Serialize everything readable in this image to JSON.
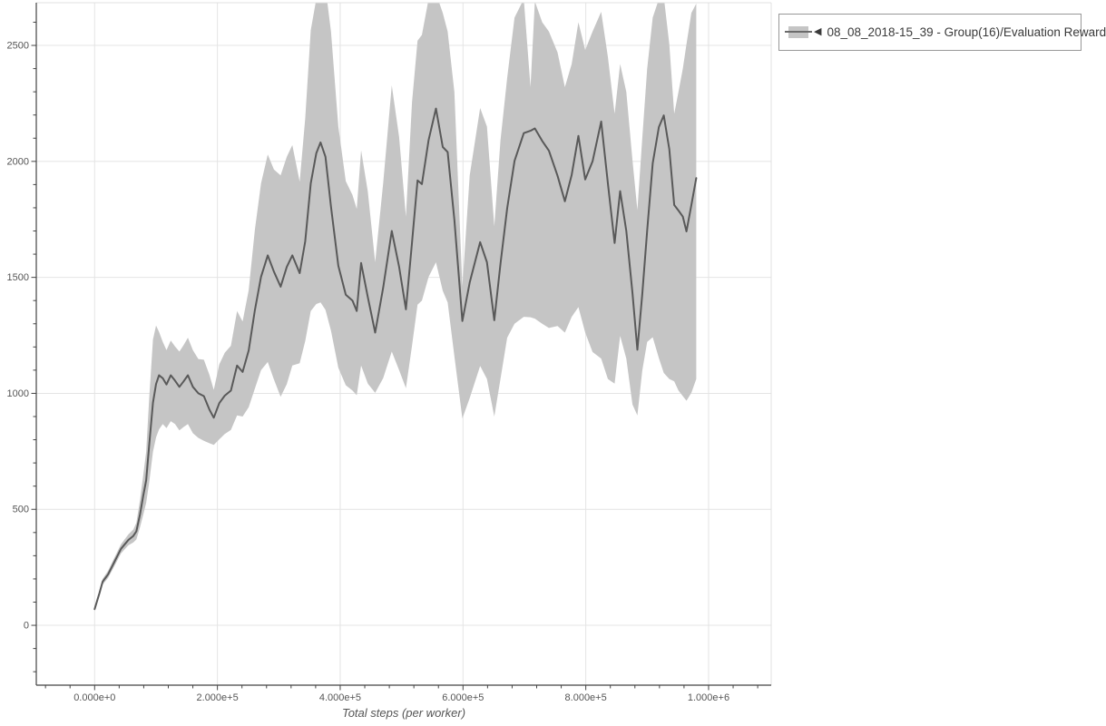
{
  "legend": {
    "collapse_arrow": "◀",
    "entries": [
      {
        "label": "08_08_2018-15_39 - Group(16)/Evaluation Reward",
        "line_color": "#6b6b6b",
        "band_color": "#c5c5c5"
      }
    ]
  },
  "chart_data": {
    "type": "line",
    "title": "",
    "xlabel": "Total steps (per worker)",
    "ylabel": "",
    "grid": true,
    "legend_position": "top-right-outside",
    "xlim": [
      -95000,
      1102000
    ],
    "ylim": [
      -258,
      2684
    ],
    "x_major_ticks": [
      {
        "value": 0,
        "label": "0.000e+0"
      },
      {
        "value": 200000,
        "label": "2.000e+5"
      },
      {
        "value": 400000,
        "label": "4.000e+5"
      },
      {
        "value": 600000,
        "label": "6.000e+5"
      },
      {
        "value": 800000,
        "label": "8.000e+5"
      },
      {
        "value": 1000000,
        "label": "1.000e+6"
      }
    ],
    "x_minor_step": 40000,
    "y_major_ticks": [
      {
        "value": 0,
        "label": "0"
      },
      {
        "value": 500,
        "label": "500"
      },
      {
        "value": 1000,
        "label": "1000"
      },
      {
        "value": 1500,
        "label": "1500"
      },
      {
        "value": 2000,
        "label": "2000"
      },
      {
        "value": 2500,
        "label": "2500"
      }
    ],
    "y_minor_step": 100,
    "series": [
      {
        "name": "08_08_2018-15_39 - Group(16)/Evaluation Reward",
        "color": "#595959",
        "band_color": "#c5c5c5",
        "point_format": [
          "step",
          "mean",
          "band_lower",
          "band_upper"
        ],
        "points": [
          [
            0,
            70,
            62,
            80
          ],
          [
            8000,
            140,
            128,
            152
          ],
          [
            13000,
            188,
            175,
            200
          ],
          [
            22000,
            220,
            205,
            236
          ],
          [
            32000,
            272,
            254,
            290
          ],
          [
            43000,
            330,
            310,
            350
          ],
          [
            55000,
            368,
            345,
            392
          ],
          [
            63000,
            385,
            357,
            413
          ],
          [
            68000,
            405,
            370,
            442
          ],
          [
            74000,
            480,
            424,
            542
          ],
          [
            79000,
            555,
            474,
            642
          ],
          [
            84000,
            625,
            528,
            748
          ],
          [
            89000,
            780,
            618,
            982
          ],
          [
            95000,
            960,
            748,
            1232
          ],
          [
            100000,
            1040,
            810,
            1292
          ],
          [
            105000,
            1078,
            845,
            1265
          ],
          [
            111000,
            1065,
            868,
            1222
          ],
          [
            117000,
            1038,
            850,
            1186
          ],
          [
            124000,
            1078,
            880,
            1228
          ],
          [
            131000,
            1055,
            868,
            1202
          ],
          [
            138000,
            1028,
            840,
            1180
          ],
          [
            145000,
            1052,
            855,
            1208
          ],
          [
            152000,
            1078,
            868,
            1240
          ],
          [
            160000,
            1028,
            828,
            1186
          ],
          [
            169000,
            1000,
            808,
            1148
          ],
          [
            178000,
            988,
            795,
            1145
          ],
          [
            187000,
            930,
            785,
            1080
          ],
          [
            194000,
            895,
            778,
            1015
          ],
          [
            203000,
            958,
            802,
            1125
          ],
          [
            212000,
            990,
            825,
            1175
          ],
          [
            222000,
            1012,
            842,
            1205
          ],
          [
            232000,
            1120,
            905,
            1355
          ],
          [
            241000,
            1092,
            900,
            1310
          ],
          [
            251000,
            1185,
            940,
            1445
          ],
          [
            261000,
            1358,
            1020,
            1705
          ],
          [
            271000,
            1502,
            1100,
            1905
          ],
          [
            282000,
            1595,
            1135,
            2030
          ],
          [
            292000,
            1525,
            1060,
            1965
          ],
          [
            303000,
            1460,
            985,
            1940
          ],
          [
            313000,
            1545,
            1040,
            2020
          ],
          [
            322000,
            1595,
            1120,
            2070
          ],
          [
            334000,
            1518,
            1130,
            1912
          ],
          [
            343000,
            1655,
            1225,
            2185
          ],
          [
            352000,
            1905,
            1355,
            2565
          ],
          [
            361000,
            2035,
            1385,
            2700
          ],
          [
            368000,
            2082,
            1392,
            2770
          ],
          [
            376000,
            2020,
            1360,
            2750
          ],
          [
            385000,
            1805,
            1270,
            2560
          ],
          [
            397000,
            1550,
            1110,
            2150
          ],
          [
            409000,
            1425,
            1035,
            1915
          ],
          [
            420000,
            1400,
            1012,
            1855
          ],
          [
            427000,
            1355,
            992,
            1795
          ],
          [
            434000,
            1562,
            1120,
            2048
          ],
          [
            445000,
            1415,
            1042,
            1870
          ],
          [
            457000,
            1262,
            1002,
            1565
          ],
          [
            470000,
            1455,
            1065,
            1905
          ],
          [
            484000,
            1700,
            1180,
            2328
          ],
          [
            496000,
            1545,
            1100,
            2105
          ],
          [
            507000,
            1362,
            1022,
            1762
          ],
          [
            517000,
            1650,
            1205,
            2255
          ],
          [
            526000,
            1918,
            1382,
            2520
          ],
          [
            533000,
            1902,
            1400,
            2545
          ],
          [
            544000,
            2092,
            1502,
            2700
          ],
          [
            556000,
            2228,
            1565,
            2725
          ],
          [
            567000,
            2062,
            1442,
            2640
          ],
          [
            575000,
            2040,
            1392,
            2560
          ],
          [
            586000,
            1748,
            1160,
            2300
          ],
          [
            599000,
            1312,
            892,
            1460
          ],
          [
            611000,
            1478,
            980,
            1940
          ],
          [
            628000,
            1652,
            1118,
            2230
          ],
          [
            639000,
            1565,
            1062,
            2150
          ],
          [
            651000,
            1315,
            900,
            1720
          ],
          [
            661000,
            1558,
            1062,
            2090
          ],
          [
            672000,
            1798,
            1240,
            2360
          ],
          [
            684000,
            2002,
            1300,
            2620
          ],
          [
            699000,
            2122,
            1330,
            2700
          ],
          [
            710000,
            2132,
            1328,
            2320
          ],
          [
            717000,
            2142,
            1322,
            2690
          ],
          [
            729000,
            2088,
            1300,
            2600
          ],
          [
            740000,
            2046,
            1282,
            2560
          ],
          [
            754000,
            1938,
            1290,
            2470
          ],
          [
            766000,
            1828,
            1262,
            2320
          ],
          [
            777000,
            1942,
            1330,
            2420
          ],
          [
            788000,
            2110,
            1372,
            2600
          ],
          [
            799000,
            1922,
            1262,
            2480
          ],
          [
            811000,
            2000,
            1178,
            2560
          ],
          [
            825000,
            2172,
            1150,
            2645
          ],
          [
            836000,
            1905,
            1062,
            2450
          ],
          [
            847000,
            1648,
            1042,
            2205
          ],
          [
            856000,
            1872,
            1248,
            2420
          ],
          [
            866000,
            1700,
            1150,
            2300
          ],
          [
            876000,
            1432,
            952,
            2005
          ],
          [
            884000,
            1188,
            905,
            1790
          ],
          [
            892000,
            1428,
            1098,
            2100
          ],
          [
            900000,
            1702,
            1222,
            2400
          ],
          [
            909000,
            1992,
            1242,
            2620
          ],
          [
            919000,
            2148,
            1152,
            2700
          ],
          [
            927000,
            2198,
            1088,
            2710
          ],
          [
            936000,
            2052,
            1062,
            2505
          ],
          [
            944000,
            1812,
            1052,
            2205
          ],
          [
            951000,
            1788,
            1012,
            2300
          ],
          [
            958000,
            1762,
            988,
            2400
          ],
          [
            964000,
            1698,
            968,
            2505
          ],
          [
            972000,
            1812,
            1002,
            2640
          ],
          [
            980000,
            1928,
            1062,
            2680
          ]
        ]
      }
    ]
  },
  "style": {
    "axis_color": "#444444",
    "border_color": "#e0e0e0",
    "grid_color": "#e4e4e4",
    "tick_label_color": "#555555",
    "background": "#ffffff"
  }
}
